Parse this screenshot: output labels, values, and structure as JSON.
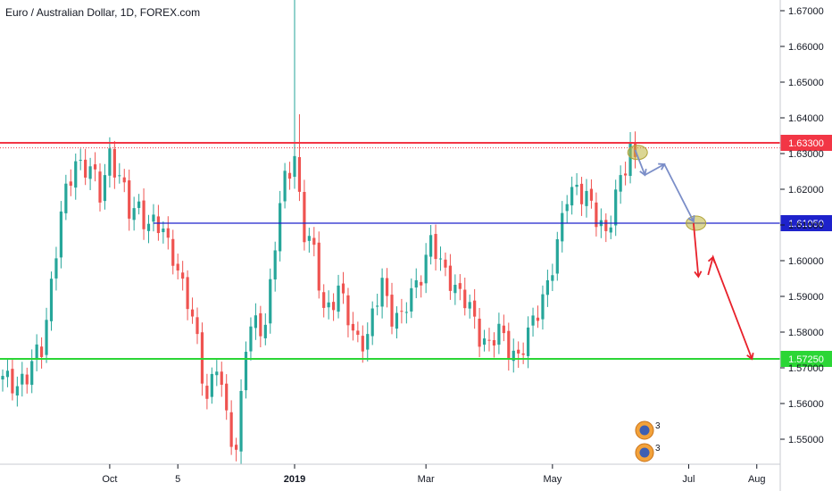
{
  "chart_data": {
    "type": "candlestick",
    "title": "Euro / Australian Dollar, 1D, FOREX.com",
    "ylim": [
      1.543,
      1.673
    ],
    "y_ticks": [
      "1.55000",
      "1.56000",
      "1.57000",
      "1.58000",
      "1.59000",
      "1.60000",
      "1.61000",
      "1.62000",
      "1.63000",
      "1.64000",
      "1.65000",
      "1.66000",
      "1.67000"
    ],
    "x_ticks": [
      {
        "label": "Oct",
        "index": 22,
        "bold": false
      },
      {
        "label": "5",
        "index": 36,
        "bold": false
      },
      {
        "label": "2019",
        "index": 60,
        "bold": true
      },
      {
        "label": "Mar",
        "index": 87,
        "bold": false
      },
      {
        "label": "May",
        "index": 113,
        "bold": false
      },
      {
        "label": "Jul",
        "index": 141,
        "bold": false
      },
      {
        "label": "Aug",
        "index": 155,
        "bold": false
      }
    ],
    "up_color": "#26a69a",
    "down_color": "#ef5350",
    "close_path": [
      [
        0,
        1.566
      ],
      [
        5,
        1.567
      ],
      [
        8,
        1.576
      ],
      [
        12,
        1.612
      ],
      [
        15,
        1.629
      ],
      [
        18,
        1.625
      ],
      [
        20,
        1.618
      ],
      [
        22,
        1.631
      ],
      [
        24,
        1.623
      ],
      [
        26,
        1.613
      ],
      [
        28,
        1.616
      ],
      [
        30,
        1.61
      ],
      [
        33,
        1.608
      ],
      [
        35,
        1.603
      ],
      [
        37,
        1.592
      ],
      [
        40,
        1.578
      ],
      [
        42,
        1.562
      ],
      [
        44,
        1.57
      ],
      [
        46,
        1.556
      ],
      [
        48,
        1.548
      ],
      [
        50,
        1.576
      ],
      [
        52,
        1.582
      ],
      [
        54,
        1.583
      ],
      [
        56,
        1.605
      ],
      [
        58,
        1.622
      ],
      [
        60,
        1.63
      ],
      [
        62,
        1.608
      ],
      [
        64,
        1.601
      ],
      [
        66,
        1.587
      ],
      [
        69,
        1.591
      ],
      [
        72,
        1.58
      ],
      [
        75,
        1.578
      ],
      [
        78,
        1.594
      ],
      [
        80,
        1.586
      ],
      [
        82,
        1.583
      ],
      [
        85,
        1.594
      ],
      [
        88,
        1.605
      ],
      [
        90,
        1.598
      ],
      [
        92,
        1.596
      ],
      [
        95,
        1.588
      ],
      [
        98,
        1.58
      ],
      [
        100,
        1.577
      ],
      [
        102,
        1.579
      ],
      [
        104,
        1.576
      ],
      [
        106,
        1.574
      ],
      [
        108,
        1.578
      ],
      [
        110,
        1.586
      ],
      [
        112,
        1.595
      ],
      [
        114,
        1.603
      ],
      [
        116,
        1.618
      ],
      [
        118,
        1.622
      ],
      [
        120,
        1.617
      ],
      [
        122,
        1.611
      ],
      [
        124,
        1.609
      ],
      [
        126,
        1.618
      ],
      [
        128,
        1.625
      ],
      [
        129,
        1.631
      ],
      [
        130,
        1.6295
      ]
    ],
    "highs": [
      {
        "index": 60,
        "value": 1.673
      },
      {
        "index": 61,
        "value": 1.641
      },
      {
        "index": 129,
        "value": 1.636
      }
    ],
    "lows": [
      {
        "index": 49,
        "value": 1.543
      },
      {
        "index": 106,
        "value": 1.57
      }
    ],
    "horizontal_levels": [
      {
        "value": 1.633,
        "label": "1.63300",
        "color": "#f23645",
        "dotted_value": 1.6316
      },
      {
        "value": 1.6105,
        "label": "1.61050",
        "color": "#1e22cc",
        "start_index": 31
      },
      {
        "value": 1.5725,
        "label": "1.57250",
        "color": "#2bd636"
      }
    ],
    "projection_arrows": [
      {
        "color": "#7b8ec8",
        "points": [
          [
            130,
            1.631
          ],
          [
            132,
            1.624
          ],
          [
            136,
            1.627
          ],
          [
            142,
            1.611
          ]
        ]
      },
      {
        "color": "#e8212b",
        "points": [
          [
            142,
            1.6105
          ],
          [
            143,
            1.5955
          ]
        ]
      },
      {
        "color": "#e8212b",
        "points": [
          [
            145,
            1.596
          ],
          [
            146,
            1.601
          ],
          [
            154,
            1.5725
          ]
        ]
      }
    ],
    "highlight_ellipses": [
      {
        "index": 130.5,
        "value": 1.6303
      },
      {
        "index": 142.5,
        "value": 1.6105
      }
    ],
    "badge_icon": "dividend-badge-icon",
    "badge_number": "3"
  }
}
